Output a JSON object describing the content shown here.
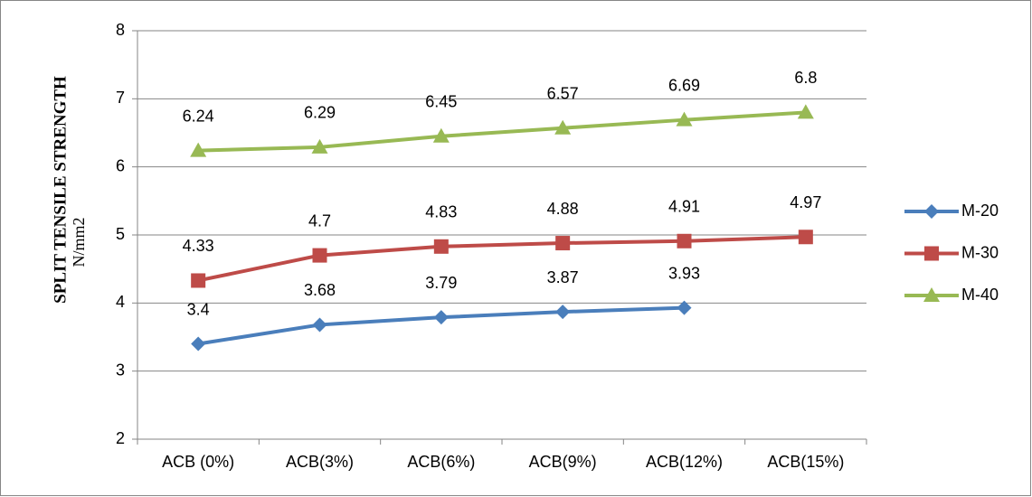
{
  "chart_data": {
    "type": "line",
    "y_label": "SPLIT TENSILE STRENGTH",
    "y_label_unit": "N/mm2",
    "categories": [
      "ACB (0%)",
      "ACB(3%)",
      "ACB(6%)",
      "ACB(9%)",
      "ACB(12%)",
      "ACB(15%)"
    ],
    "series": [
      {
        "name": "M-20",
        "color": "#4a7ebb",
        "marker": "diamond",
        "values": [
          3.4,
          3.68,
          3.79,
          3.87,
          3.93,
          null
        ]
      },
      {
        "name": "M-30",
        "color": "#be4b48",
        "marker": "square",
        "values": [
          4.33,
          4.7,
          4.83,
          4.88,
          4.91,
          4.97
        ]
      },
      {
        "name": "M-40",
        "color": "#98b954",
        "marker": "triangle",
        "values": [
          6.24,
          6.29,
          6.45,
          6.57,
          6.69,
          6.8
        ]
      }
    ],
    "ylim": [
      2,
      8
    ],
    "yticks": [
      2,
      3,
      4,
      5,
      6,
      7,
      8
    ],
    "grid": true,
    "legend": "right"
  }
}
